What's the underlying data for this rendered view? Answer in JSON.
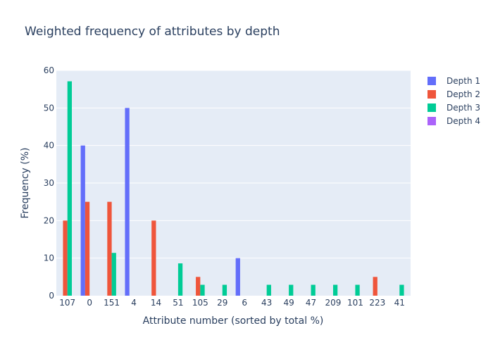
{
  "chart_data": {
    "type": "bar",
    "title": "Weighted frequency of attributes by depth",
    "xlabel": "Attribute number (sorted by total %)",
    "ylabel": "Frequency (%)",
    "ylim": [
      0,
      60
    ],
    "yticks": [
      0,
      10,
      20,
      30,
      40,
      50,
      60
    ],
    "grid": true,
    "legend_position": "top-right",
    "categories": [
      "107",
      "0",
      "151",
      "4",
      "14",
      "51",
      "105",
      "29",
      "6",
      "43",
      "49",
      "47",
      "209",
      "101",
      "223",
      "41"
    ],
    "series": [
      {
        "name": "Depth 1",
        "color": "#636efa",
        "values": [
          0,
          40,
          0,
          50,
          0,
          0,
          0,
          0,
          10,
          0,
          0,
          0,
          0,
          0,
          0,
          0
        ]
      },
      {
        "name": "Depth 2",
        "color": "#ef553b",
        "values": [
          20,
          25,
          25,
          0,
          20,
          0,
          5,
          0,
          0,
          0,
          0,
          0,
          0,
          0,
          5,
          0
        ]
      },
      {
        "name": "Depth 3",
        "color": "#00cc96",
        "values": [
          57.1,
          0,
          11.4,
          0,
          0,
          8.6,
          2.9,
          2.9,
          0,
          2.9,
          2.9,
          2.9,
          2.9,
          2.9,
          0,
          2.9
        ]
      },
      {
        "name": "Depth 4",
        "color": "#ab63fa",
        "values": [
          0,
          0,
          0,
          0,
          0,
          0,
          0,
          0,
          0,
          0,
          0,
          0,
          0,
          0,
          0,
          0
        ]
      }
    ]
  }
}
